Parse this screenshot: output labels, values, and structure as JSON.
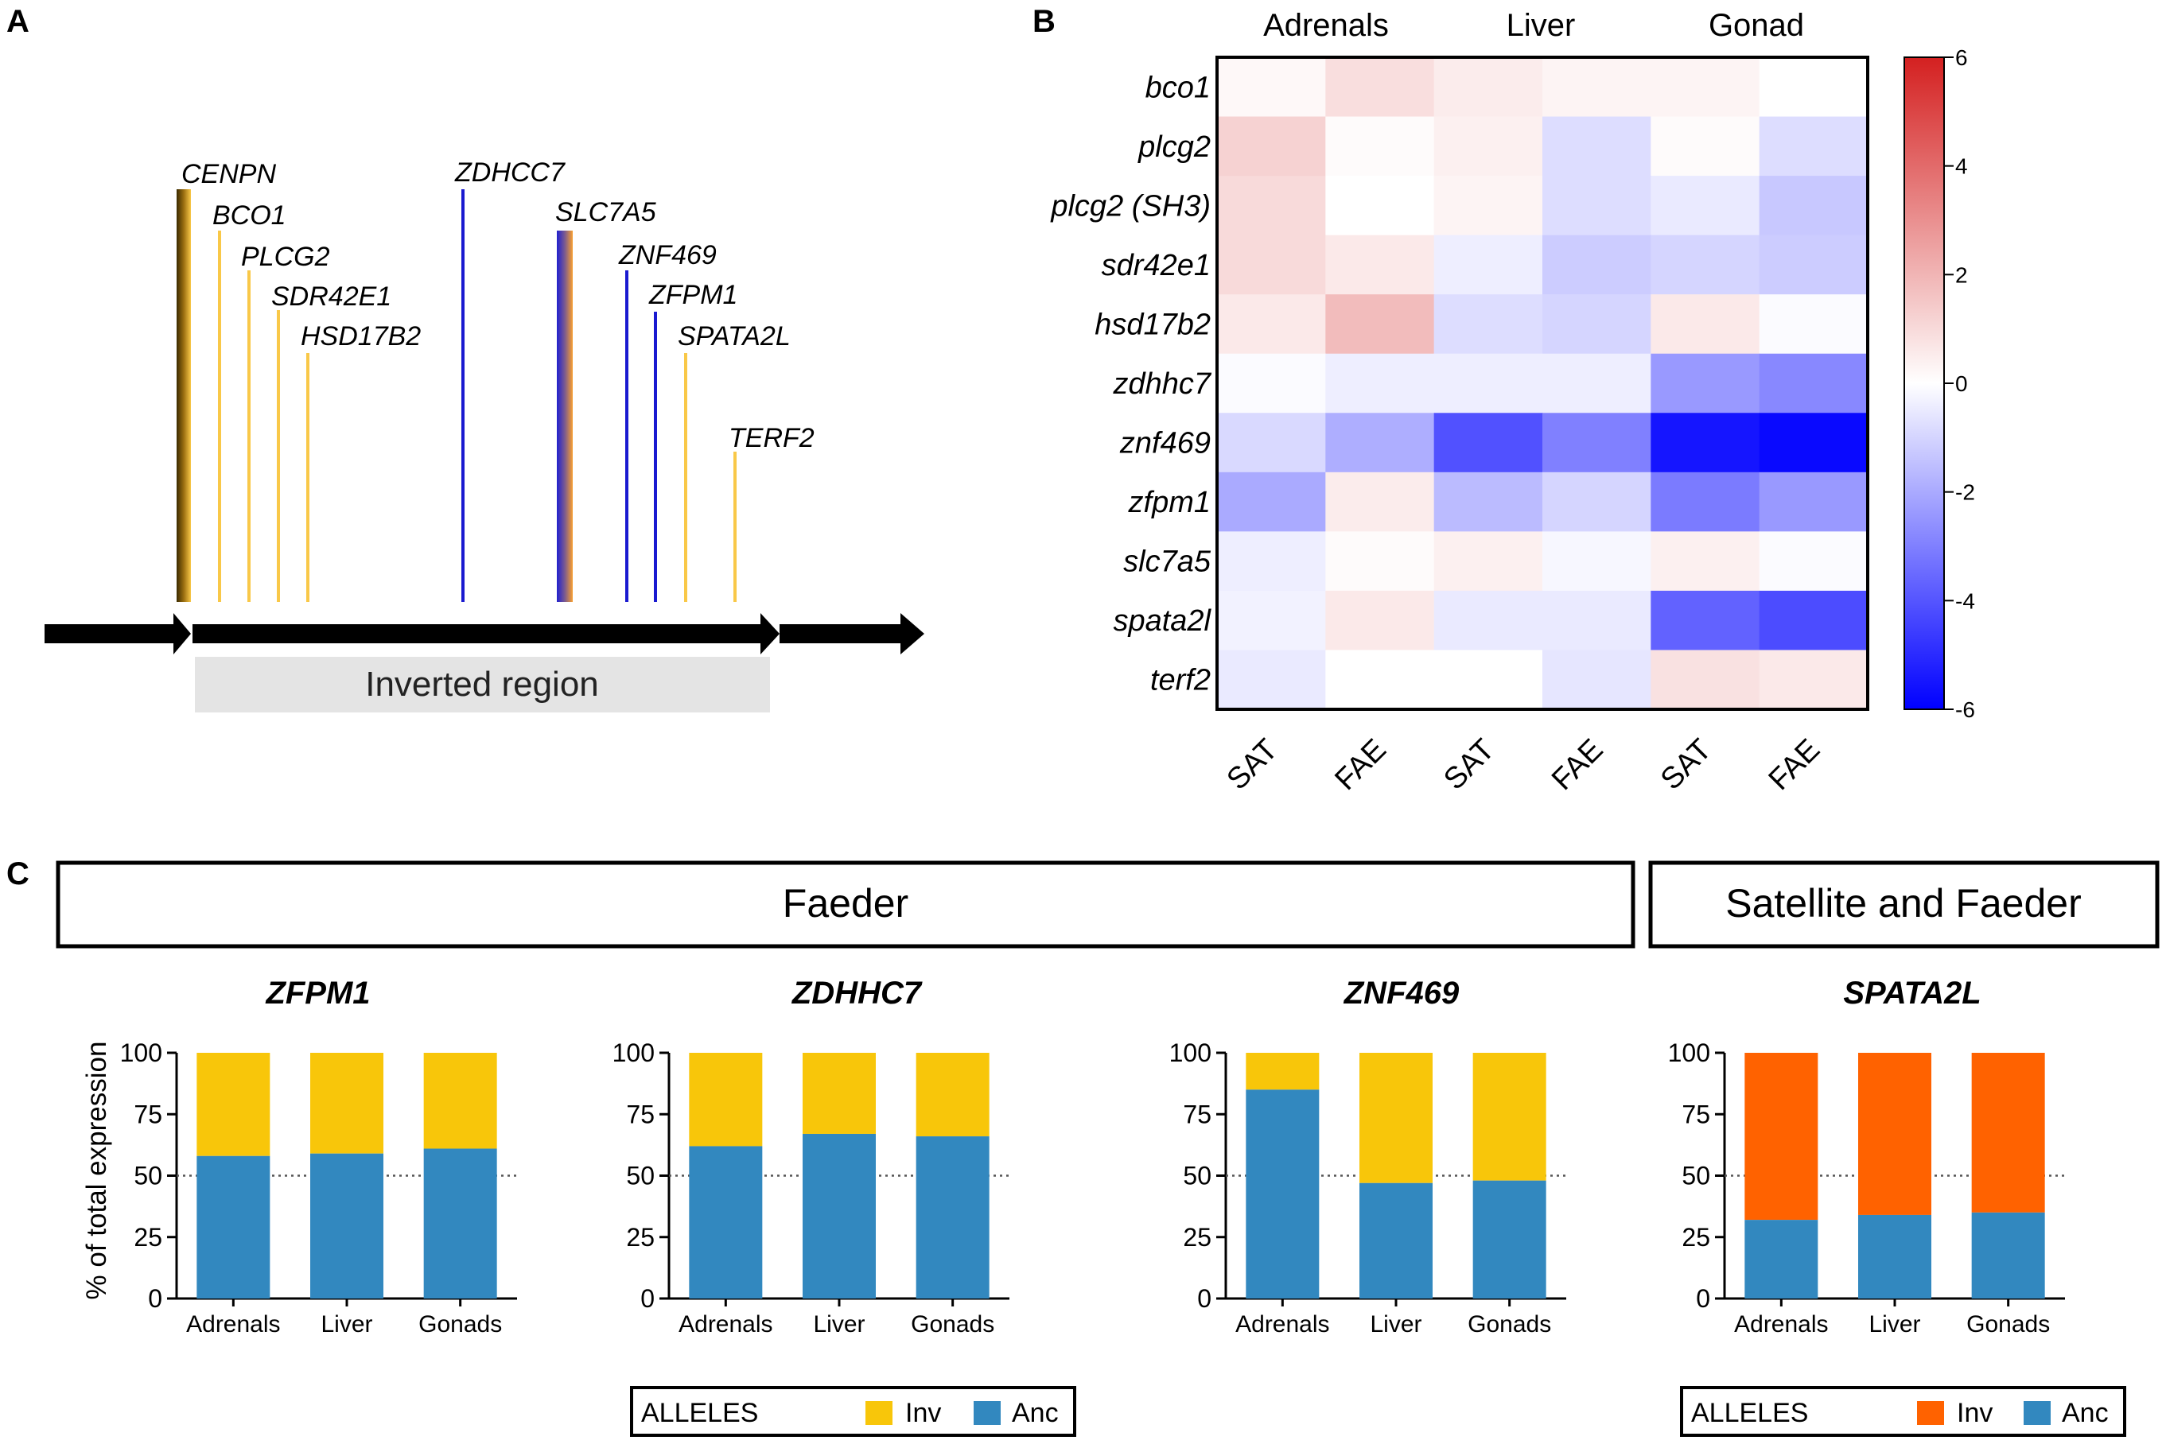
{
  "colors": {
    "yellow": "#F8C60A",
    "orange": "#FF6200",
    "blue_bar": "#3288BF",
    "gene_yellow": "#F9C848",
    "gene_blue": "#1A1AD0",
    "black": "#000000",
    "inverted_box": "#E4E4E4",
    "heat_low": "#0000FF",
    "heat_mid": "#FFFFFF",
    "heat_high": "#D42020"
  },
  "panel_labels": [
    "A",
    "B",
    "C"
  ],
  "panel_a": {
    "inverted_region_label": "Inverted region",
    "genes": [
      {
        "name": "CENPN",
        "color": "mixed"
      },
      {
        "name": "BCO1",
        "color": "yellow"
      },
      {
        "name": "PLCG2",
        "color": "yellow"
      },
      {
        "name": "SDR42E1",
        "color": "yellow"
      },
      {
        "name": "HSD17B2",
        "color": "yellow"
      },
      {
        "name": "ZDHCC7",
        "color": "blue"
      },
      {
        "name": "SLC7A5",
        "color": "mixed"
      },
      {
        "name": "ZNF469",
        "color": "blue"
      },
      {
        "name": "ZFPM1",
        "color": "blue"
      },
      {
        "name": "SPATA2L",
        "color": "yellow"
      },
      {
        "name": "TERF2",
        "color": "yellow"
      }
    ]
  },
  "panel_b": {
    "top_labels": [
      "Adrenals",
      "Liver",
      "Gonad"
    ],
    "colorbar_ticks": [
      "6",
      "4",
      "2",
      "0",
      "-2",
      "-4",
      "-6"
    ]
  },
  "panel_c": {
    "group_boxes": [
      "Faeder",
      "Satellite and Faeder"
    ],
    "ylabel": "% of total expression",
    "legends": [
      {
        "title": "ALLELES",
        "inv_label": "Inv",
        "anc_label": "Anc",
        "inv_color": "#F8C60A",
        "anc_color": "#3288BF"
      },
      {
        "title": "ALLELES",
        "inv_label": "Inv",
        "anc_label": "Anc",
        "inv_color": "#FF6200",
        "anc_color": "#3288BF"
      }
    ]
  },
  "chart_data": [
    {
      "type": "heatmap",
      "title": "",
      "rows": [
        "bco1",
        "plcg2",
        "plcg2 (SH3)",
        "sdr42e1",
        "hsd17b2",
        "zdhhc7",
        "znf469",
        "zfpm1",
        "slc7a5",
        "spata2l",
        "terf2"
      ],
      "columns": [
        "SAT",
        "FAE",
        "SAT",
        "FAE",
        "SAT",
        "FAE"
      ],
      "column_groups": [
        "Adrenals",
        "Liver",
        "Gonad"
      ],
      "values": [
        [
          0.2,
          0.9,
          0.5,
          0.3,
          0.3,
          0.0
        ],
        [
          1.2,
          0.1,
          0.4,
          -0.8,
          0.1,
          -0.8
        ],
        [
          1.0,
          0.0,
          0.3,
          -0.8,
          -0.5,
          -1.3
        ],
        [
          1.0,
          0.6,
          -0.4,
          -1.2,
          -1.0,
          -1.2
        ],
        [
          0.6,
          1.8,
          -0.8,
          -1.0,
          0.6,
          -0.1
        ],
        [
          -0.1,
          -0.4,
          -0.4,
          -0.4,
          -2.4,
          -2.8
        ],
        [
          -0.9,
          -1.9,
          -4.1,
          -3.0,
          -5.5,
          -5.8
        ],
        [
          -2.0,
          0.5,
          -1.6,
          -1.0,
          -3.1,
          -2.4
        ],
        [
          -0.4,
          0.1,
          0.4,
          -0.2,
          0.4,
          -0.1
        ],
        [
          -0.3,
          0.6,
          -0.5,
          -0.5,
          -3.7,
          -4.2
        ],
        [
          -0.5,
          0.0,
          0.0,
          -0.6,
          0.8,
          0.6
        ]
      ],
      "colorbar_range": [
        -6,
        6
      ]
    },
    {
      "type": "bar",
      "stacked": true,
      "title": "ZFPM1",
      "group": "Faeder",
      "categories": [
        "Adrenals",
        "Liver",
        "Gonads"
      ],
      "series": [
        {
          "name": "Anc",
          "values": [
            58,
            59,
            61
          ]
        },
        {
          "name": "Inv",
          "values": [
            42,
            41,
            39
          ]
        }
      ],
      "ylabel": "% of total expression",
      "ylim": [
        0,
        100
      ],
      "yticks": [
        "0",
        "25",
        "50",
        "75",
        "100"
      ],
      "reference_line": 50
    },
    {
      "type": "bar",
      "stacked": true,
      "title": "ZDHHC7",
      "group": "Faeder",
      "categories": [
        "Adrenals",
        "Liver",
        "Gonads"
      ],
      "series": [
        {
          "name": "Anc",
          "values": [
            62,
            67,
            66
          ]
        },
        {
          "name": "Inv",
          "values": [
            38,
            33,
            34
          ]
        }
      ],
      "ylim": [
        0,
        100
      ],
      "yticks": [
        "0",
        "25",
        "50",
        "75",
        "100"
      ],
      "reference_line": 50
    },
    {
      "type": "bar",
      "stacked": true,
      "title": "ZNF469",
      "group": "Faeder",
      "categories": [
        "Adrenals",
        "Liver",
        "Gonads"
      ],
      "series": [
        {
          "name": "Anc",
          "values": [
            85,
            47,
            48
          ]
        },
        {
          "name": "Inv",
          "values": [
            15,
            53,
            52
          ]
        }
      ],
      "ylim": [
        0,
        100
      ],
      "yticks": [
        "0",
        "25",
        "50",
        "75",
        "100"
      ],
      "reference_line": 50
    },
    {
      "type": "bar",
      "stacked": true,
      "title": "SPATA2L",
      "group": "Satellite and Faeder",
      "categories": [
        "Adrenals",
        "Liver",
        "Gonads"
      ],
      "series": [
        {
          "name": "Anc",
          "values": [
            32,
            34,
            35
          ]
        },
        {
          "name": "Inv",
          "values": [
            68,
            66,
            65
          ]
        }
      ],
      "ylim": [
        0,
        100
      ],
      "yticks": [
        "0",
        "25",
        "50",
        "75",
        "100"
      ],
      "reference_line": 50
    }
  ]
}
